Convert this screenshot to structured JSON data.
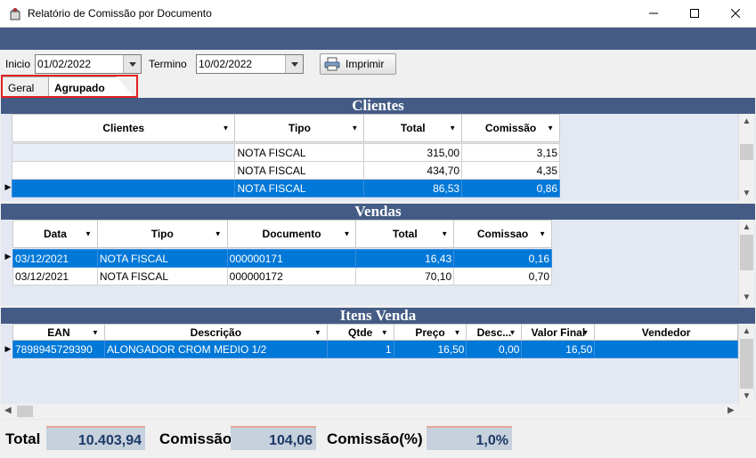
{
  "window": {
    "title": "Relatório de Comissão por  Documento",
    "minimize_icon": "minimize-icon",
    "maximize_icon": "maximize-icon",
    "close_icon": "close-icon"
  },
  "toolbar": {
    "inicio_label": "Inicio",
    "inicio_value": "01/02/2022",
    "termino_label": "Termino",
    "termino_value": "10/02/2022",
    "print_label": "Imprimir"
  },
  "tabs": [
    {
      "label": "Geral"
    },
    {
      "label": "Agrupado"
    }
  ],
  "clientes": {
    "title": "Clientes",
    "columns": [
      "Clientes",
      "Tipo",
      "Total",
      "Comissão"
    ],
    "rows": [
      {
        "cliente": "",
        "tipo": "NOTA FISCAL",
        "total": "315,00",
        "comissao": "3,15"
      },
      {
        "cliente": "",
        "tipo": "NOTA FISCAL",
        "total": "434,70",
        "comissao": "4,35"
      },
      {
        "cliente": "",
        "tipo": "NOTA FISCAL",
        "total": "86,53",
        "comissao": "0,86"
      }
    ]
  },
  "vendas": {
    "title": "Vendas",
    "columns": [
      "Data",
      "Tipo",
      "Documento",
      "Total",
      "Comissao"
    ],
    "rows": [
      {
        "data": "03/12/2021",
        "tipo": "NOTA FISCAL",
        "documento": "000000171",
        "total": "16,43",
        "comissao": "0,16"
      },
      {
        "data": "03/12/2021",
        "tipo": "NOTA FISCAL",
        "documento": "000000172",
        "total": "70,10",
        "comissao": "0,70"
      }
    ]
  },
  "itens": {
    "title": "Itens Venda",
    "columns": [
      "EAN",
      "Descrição",
      "Qtde",
      "Preço",
      "Desc...",
      "Valor Final",
      "Vendedor"
    ],
    "rows": [
      {
        "ean": "7898945729390",
        "descricao": "ALONGADOR CROM MEDIO 1/2",
        "qtde": "1",
        "preco": "16,50",
        "desc": "0,00",
        "valor_final": "16,50",
        "vendedor": ""
      }
    ]
  },
  "footer": {
    "total_label": "Total",
    "total_value": "10.403,94",
    "comissao_label": "Comissão",
    "comissao_value": "104,06",
    "comissao_pct_label": "Comissão(%)",
    "comissao_pct_value": "1,0%"
  }
}
